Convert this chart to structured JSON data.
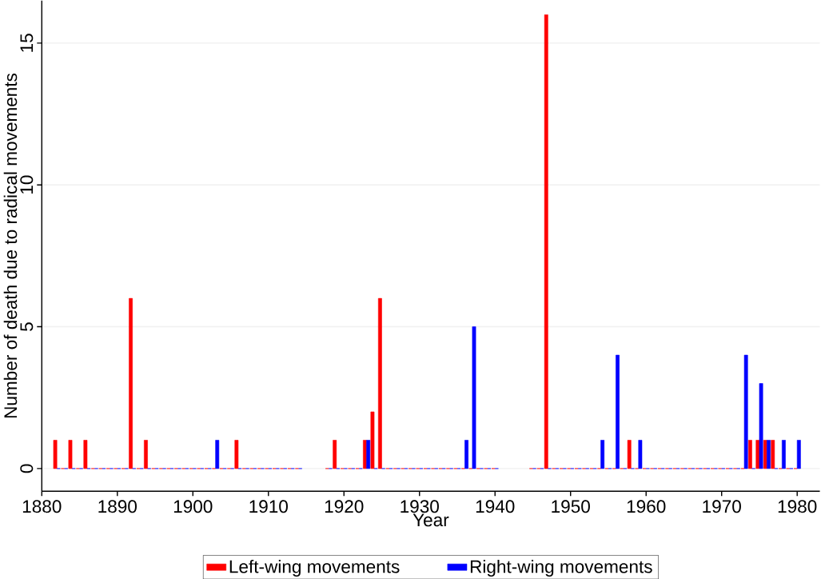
{
  "chart_data": {
    "type": "bar",
    "xlabel": "Year",
    "ylabel": "Number of death due to radical movements",
    "x": [
      1882,
      1883,
      1884,
      1885,
      1886,
      1887,
      1888,
      1889,
      1890,
      1891,
      1892,
      1893,
      1894,
      1895,
      1896,
      1897,
      1898,
      1899,
      1900,
      1901,
      1902,
      1903,
      1904,
      1905,
      1906,
      1907,
      1908,
      1909,
      1910,
      1911,
      1912,
      1913,
      1914,
      1918,
      1919,
      1920,
      1921,
      1922,
      1923,
      1924,
      1925,
      1926,
      1927,
      1928,
      1929,
      1930,
      1931,
      1932,
      1933,
      1934,
      1935,
      1936,
      1937,
      1938,
      1939,
      1940,
      1945,
      1946,
      1947,
      1948,
      1949,
      1950,
      1951,
      1952,
      1953,
      1954,
      1955,
      1956,
      1957,
      1958,
      1959,
      1960,
      1961,
      1962,
      1963,
      1964,
      1965,
      1966,
      1967,
      1968,
      1969,
      1970,
      1971,
      1972,
      1973,
      1974,
      1975,
      1976,
      1977,
      1978,
      1979,
      1980
    ],
    "series": [
      {
        "name": "Left-wing movements",
        "color": "#ff0000",
        "values": [
          1,
          0,
          1,
          0,
          1,
          0,
          0,
          0,
          0,
          0,
          6,
          0,
          1,
          0,
          0,
          0,
          0,
          0,
          0,
          0,
          0,
          0,
          0,
          0,
          1,
          0,
          0,
          0,
          0,
          0,
          0,
          0,
          0,
          0,
          1,
          0,
          0,
          0,
          1,
          2,
          6,
          0,
          0,
          0,
          0,
          0,
          0,
          0,
          0,
          0,
          0,
          0,
          0,
          0,
          0,
          0,
          0,
          0,
          16,
          0,
          0,
          0,
          0,
          0,
          0,
          0,
          0,
          0,
          0,
          1,
          0,
          0,
          0,
          0,
          0,
          0,
          0,
          0,
          0,
          0,
          0,
          0,
          0,
          0,
          0,
          1,
          1,
          1,
          1,
          0,
          0,
          0
        ]
      },
      {
        "name": "Right-wing movements",
        "color": "#0000ff",
        "values": [
          0,
          0,
          0,
          0,
          0,
          0,
          0,
          0,
          0,
          0,
          0,
          0,
          0,
          0,
          0,
          0,
          0,
          0,
          0,
          0,
          0,
          1,
          0,
          0,
          0,
          0,
          0,
          0,
          0,
          0,
          0,
          0,
          0,
          0,
          0,
          0,
          0,
          0,
          1,
          0,
          0,
          0,
          0,
          0,
          0,
          0,
          0,
          0,
          0,
          0,
          0,
          1,
          5,
          0,
          0,
          0,
          0,
          0,
          0,
          0,
          0,
          0,
          0,
          0,
          0,
          1,
          0,
          4,
          0,
          0,
          1,
          0,
          0,
          0,
          0,
          0,
          0,
          0,
          0,
          0,
          0,
          0,
          0,
          0,
          4,
          0,
          3,
          1,
          0,
          1,
          0,
          1
        ]
      }
    ],
    "xlim": [
      1880,
      1983
    ],
    "ylim": [
      -0.8,
      16.5
    ],
    "xticks": [
      1880,
      1890,
      1900,
      1910,
      1920,
      1930,
      1940,
      1950,
      1960,
      1970,
      1980
    ],
    "yticks": [
      0,
      5,
      10,
      15
    ],
    "grid": "y",
    "legend": "bottom"
  }
}
